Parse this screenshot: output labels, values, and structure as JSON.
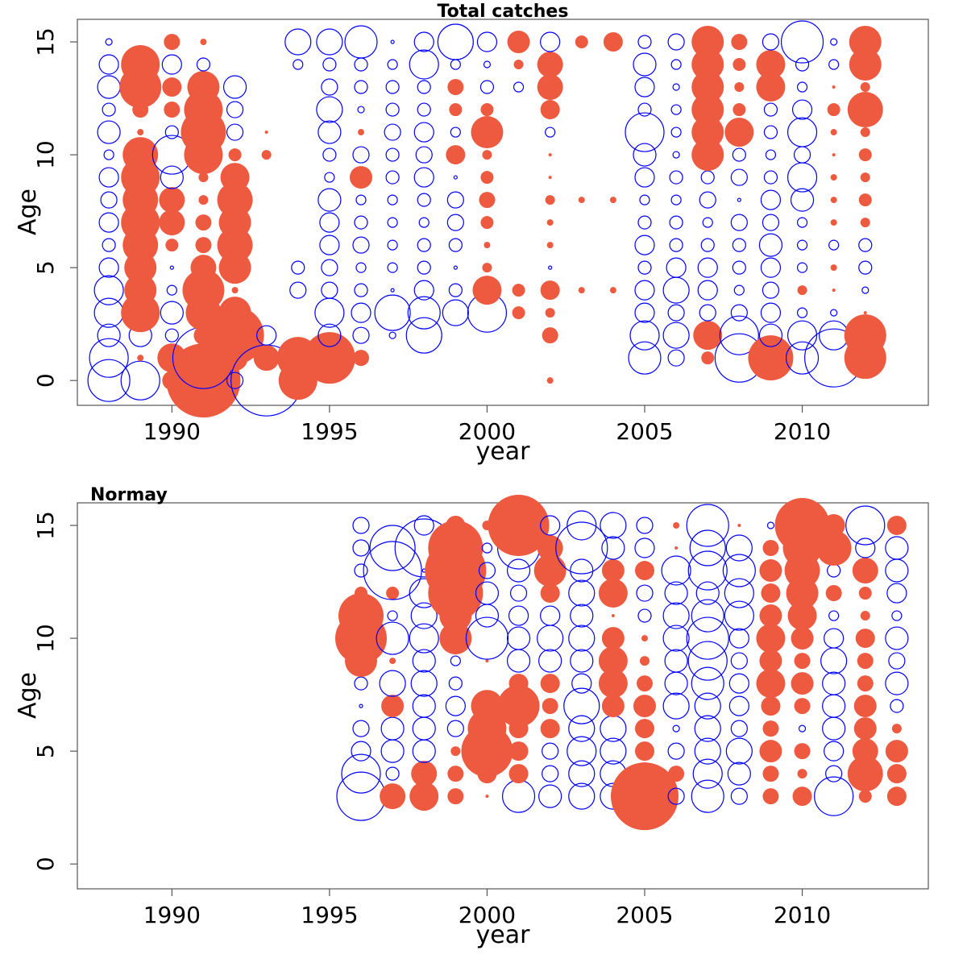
{
  "chart_data": [
    {
      "type": "scatter",
      "subtype": "bubble",
      "title": "Total catches",
      "xlabel": "year",
      "ylabel": "Age",
      "xlim": [
        1987,
        2014
      ],
      "ylim": [
        -1.1,
        16.0
      ],
      "xticks": [
        1990,
        1995,
        2000,
        2005,
        2010
      ],
      "yticks": [
        0,
        5,
        10,
        15
      ],
      "colors": {
        "positive": "#ee5a40",
        "negative": "#0000ff"
      },
      "ages": [
        0,
        1,
        2,
        3,
        4,
        5,
        6,
        7,
        8,
        9,
        10,
        11,
        12,
        13,
        14,
        15
      ],
      "x": [
        1988,
        1989,
        1990,
        1991,
        1992,
        1993,
        1994,
        1995,
        1996,
        1997,
        1998,
        1999,
        2000,
        2001,
        2002,
        2003,
        2004,
        2005,
        2006,
        2007,
        2008,
        2009,
        2010,
        2011,
        2012
      ],
      "residuals": [
        [
          -1.3,
          -1.2,
          -0.7,
          -0.9,
          -0.9,
          -0.6,
          -0.4,
          -0.6,
          -0.5,
          -0.6,
          -0.3,
          -0.7,
          -0.4,
          -0.7,
          -0.6,
          -0.2
        ],
        [
          -1.2,
          0.2,
          -0.7,
          1.2,
          1.0,
          1.0,
          1.1,
          1.2,
          1.1,
          1.2,
          1.1,
          0.2,
          0.5,
          1.3,
          1.2,
          0.0
        ],
        [
          0.6,
          0.9,
          -0.4,
          -0.7,
          -0.3,
          -0.1,
          0.4,
          0.8,
          0.8,
          -0.7,
          -1.2,
          -0.4,
          0.5,
          0.6,
          -0.6,
          0.5
        ],
        [
          2.3,
          -1.9,
          0.6,
          1.1,
          1.3,
          0.8,
          0.5,
          0.5,
          0.3,
          0.3,
          1.2,
          1.4,
          1.2,
          1.0,
          -0.4,
          0.2
        ],
        [
          -0.5,
          0.8,
          1.8,
          1.0,
          0.2,
          1.0,
          1.1,
          1.0,
          1.1,
          0.9,
          0.4,
          -0.5,
          -0.5,
          -0.7,
          0,
          0
        ],
        [
          -2.2,
          0.8,
          -0.6,
          0,
          0,
          0,
          0,
          0,
          0,
          0,
          0.3,
          0.1,
          0,
          0,
          0,
          0
        ],
        [
          1.2,
          1.3,
          0,
          0,
          -0.5,
          -0.4,
          0,
          0,
          0,
          0,
          0,
          0,
          0,
          0,
          -0.3,
          -0.8
        ],
        [
          0,
          1.6,
          -0.7,
          -0.9,
          -0.5,
          -0.5,
          -0.6,
          -0.6,
          -0.7,
          -0.3,
          -0.4,
          -0.7,
          -0.8,
          -0.5,
          -0.4,
          -0.8
        ],
        [
          0,
          0.5,
          -0.5,
          -0.6,
          -0.4,
          -0.3,
          -0.5,
          -0.4,
          -0.3,
          0.7,
          -0.5,
          0.2,
          -0.2,
          -0.4,
          -0.4,
          -1.0
        ],
        [
          0,
          0,
          -0.2,
          -1.1,
          -0.1,
          -0.3,
          -0.3,
          -0.3,
          -0.3,
          -0.4,
          -0.4,
          -0.5,
          -0.4,
          -0.4,
          -0.3,
          -0.1
        ],
        [
          0,
          0,
          -1.1,
          -1.0,
          -0.6,
          -0.4,
          -0.4,
          -0.3,
          -0.4,
          -0.6,
          -0.5,
          -0.6,
          -0.4,
          -0.4,
          -0.9,
          -0.6
        ],
        [
          0,
          0,
          0,
          -0.8,
          -0.4,
          -0.1,
          -0.4,
          -0.5,
          -0.5,
          -0.1,
          0.6,
          -0.3,
          0.4,
          0.5,
          -0.3,
          -1.1
        ],
        [
          0,
          0,
          0,
          -1.2,
          0.9,
          0.3,
          0.2,
          0.4,
          0.5,
          0.4,
          0.3,
          1.0,
          0.4,
          -0.4,
          -0.2,
          -0.6
        ],
        [
          0,
          0,
          0,
          0.4,
          0.4,
          0,
          0,
          0,
          0,
          0,
          0,
          0,
          0,
          -0.3,
          0.3,
          0.7
        ],
        [
          0.2,
          0,
          0.5,
          0.3,
          0.6,
          -0.1,
          0.2,
          0.2,
          0.3,
          0.1,
          0.1,
          -0.3,
          0.6,
          0.8,
          0.8,
          -0.6
        ],
        [
          0,
          0,
          0,
          0,
          0.2,
          0,
          0,
          0,
          0.2,
          0,
          0,
          0,
          0,
          0,
          0,
          0.4
        ],
        [
          0,
          0,
          0,
          0,
          0.2,
          0,
          0,
          0,
          0.2,
          0,
          0,
          0,
          0,
          0,
          0,
          0.6
        ],
        [
          0,
          -1.0,
          -0.9,
          -0.6,
          -0.6,
          -0.4,
          -0.6,
          -0.4,
          -0.3,
          -0.6,
          -0.7,
          -1.2,
          -0.4,
          -0.6,
          -0.7,
          -0.4
        ],
        [
          0,
          -0.5,
          -0.8,
          -0.5,
          -0.8,
          -0.6,
          -0.4,
          -0.4,
          -0.3,
          -0.4,
          -0.2,
          -0.3,
          -0.3,
          -0.2,
          -0.3,
          -0.5
        ],
        [
          0,
          0.4,
          0.9,
          -0.5,
          -0.6,
          -0.6,
          -0.4,
          -0.3,
          -0.5,
          -0.4,
          1.0,
          1.0,
          1.0,
          1.0,
          1.0,
          1.0
        ],
        [
          0,
          -1.5,
          -1.2,
          -0.5,
          -0.3,
          -0.4,
          -0.4,
          -0.5,
          -0.1,
          -0.5,
          -0.4,
          0.9,
          0.4,
          0.3,
          0.4,
          0.5
        ],
        [
          0,
          1.4,
          -0.7,
          -0.6,
          -0.5,
          -0.6,
          -0.7,
          -0.5,
          -0.6,
          -0.4,
          -0.3,
          -0.4,
          -0.4,
          0.9,
          0.9,
          -0.5
        ],
        [
          0,
          -1.0,
          -0.9,
          -0.3,
          0.3,
          -0.3,
          -0.3,
          -0.3,
          -0.7,
          -0.9,
          -0.5,
          -0.9,
          -0.6,
          -0.3,
          -0.4,
          -1.3
        ],
        [
          0,
          -1.8,
          -0.9,
          -0.2,
          0.1,
          0.2,
          -0.3,
          0.2,
          0.2,
          0.2,
          0.1,
          0.2,
          0.4,
          0.1,
          -0.3,
          -0.2
        ],
        [
          0,
          1.3,
          1.3,
          0.1,
          -0.2,
          -0.4,
          -0.4,
          0.3,
          0.4,
          0.3,
          0.4,
          0.3,
          1.1,
          0.3,
          1.0,
          1.0
        ]
      ]
    },
    {
      "type": "scatter",
      "subtype": "bubble",
      "title": "Normay",
      "xlabel": "year",
      "ylabel": "Age",
      "xlim": [
        1987,
        2014
      ],
      "ylim": [
        -1.1,
        16.0
      ],
      "xticks": [
        1990,
        1995,
        2000,
        2005,
        2010
      ],
      "yticks": [
        0,
        5,
        10,
        15
      ],
      "colors": {
        "positive": "#ee5a40",
        "negative": "#0000ff"
      },
      "ages": [
        3,
        4,
        5,
        6,
        7,
        8,
        9,
        10,
        11,
        12,
        13,
        14,
        15
      ],
      "x": [
        1996,
        1997,
        1998,
        1999,
        2000,
        2001,
        2002,
        2003,
        2004,
        2005,
        2006,
        2007,
        2008,
        2009,
        2010,
        2011,
        2012,
        2013
      ],
      "residuals": [
        [
          -1.5,
          -1.2,
          -0.6,
          -0.5,
          -0.1,
          -0.4,
          1.0,
          1.6,
          1.4,
          0.4,
          -0.4,
          -0.5,
          -0.5
        ],
        [
          0.8,
          -0.4,
          -0.7,
          -0.7,
          0.7,
          -0.8,
          0.2,
          -1.0,
          -0.3,
          0.4,
          -1.8,
          -1.4,
          0
        ],
        [
          0.9,
          0.8,
          -0.7,
          -0.7,
          -0.7,
          -0.8,
          -0.7,
          -0.9,
          -0.8,
          -0.9,
          -0.1,
          -1.8,
          -0.6
        ],
        [
          0.5,
          0.5,
          0.3,
          -0.5,
          -0.6,
          -0.4,
          -0.3,
          1.0,
          1.0,
          1.7,
          1.9,
          1.7,
          0.6
        ],
        [
          0.1,
          0.6,
          1.6,
          1.2,
          1.0,
          0,
          0.1,
          -1.3,
          -0.7,
          -0.7,
          -0.5,
          -0.3,
          0.3
        ],
        [
          -1.0,
          0.6,
          0.6,
          0.6,
          1.3,
          0.6,
          -0.7,
          -0.7,
          -0.6,
          -0.5,
          -0.7,
          -1.3,
          1.9
        ],
        [
          -0.7,
          -0.5,
          -0.5,
          0.6,
          0.5,
          0.6,
          -0.7,
          -0.8,
          -0.6,
          0.6,
          1.0,
          0.8,
          -0.6
        ],
        [
          -0.8,
          -0.8,
          -0.9,
          -0.8,
          -1.1,
          -0.6,
          -0.7,
          -0.8,
          -0.7,
          -0.8,
          -0.7,
          -1.6,
          -0.9
        ],
        [
          -0.8,
          -0.8,
          -0.8,
          -0.8,
          0.7,
          0.9,
          0.9,
          0.7,
          0.1,
          0.9,
          0.7,
          -0.7,
          -0.8
        ],
        [
          2.1,
          0.7,
          0.6,
          0.6,
          0.7,
          0.5,
          0.3,
          0.2,
          -0.4,
          -0.5,
          0.6,
          -0.6,
          -0.5
        ],
        [
          -0.5,
          0.5,
          -0.5,
          -0.2,
          -0.8,
          -0.7,
          -0.7,
          -0.8,
          -0.8,
          -0.7,
          -0.9,
          0.1,
          0.2
        ],
        [
          -1.0,
          -0.9,
          -0.8,
          -0.8,
          -0.8,
          -1.0,
          -1.2,
          -1.3,
          -1.0,
          -0.7,
          -1.2,
          -1.1,
          -1.3
        ],
        [
          -0.5,
          -0.7,
          -0.8,
          -0.5,
          -0.6,
          -0.6,
          -0.5,
          -0.6,
          -0.9,
          -0.9,
          -1.0,
          -0.8,
          0.1
        ],
        [
          0.5,
          0.5,
          0.7,
          0.5,
          0.6,
          0.9,
          0.7,
          0.9,
          0.7,
          0.6,
          0.7,
          0.5,
          -0.2
        ],
        [
          0.6,
          0.3,
          0.5,
          -0.2,
          0.5,
          0.7,
          0.5,
          0.7,
          0.9,
          1.0,
          1.1,
          1.2,
          1.7
        ],
        [
          -1.2,
          -0.5,
          -0.6,
          -0.7,
          -0.7,
          -0.7,
          -0.8,
          -0.6,
          -0.3,
          0.5,
          -0.4,
          1.1,
          0.7
        ],
        [
          0.4,
          1.1,
          0.8,
          0.7,
          0.7,
          0.5,
          0.5,
          0.6,
          0.3,
          0.4,
          0.8,
          -0.6,
          -1.2
        ],
        [
          0.6,
          0.6,
          0.7,
          0.3,
          -0.4,
          -0.7,
          -0.5,
          -0.7,
          -0.3,
          -0.6,
          -0.7,
          -0.7,
          0.6
        ]
      ]
    }
  ]
}
